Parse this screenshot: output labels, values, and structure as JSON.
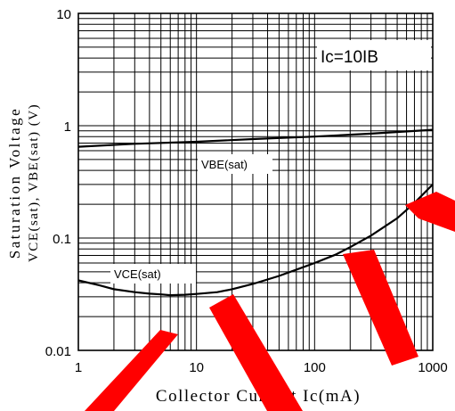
{
  "chart_data": {
    "type": "line",
    "x_scale": "log",
    "y_scale": "log",
    "xlim": [
      1,
      1000
    ],
    "ylim": [
      0.01,
      10
    ],
    "x_tick_labels": [
      "1",
      "10",
      "100",
      "1000"
    ],
    "y_tick_labels": [
      "10",
      "1",
      "0.1",
      "0.01"
    ],
    "xlabel": "Collector Current Ic(mA)",
    "ylabel_line1": "Saturation Voltage",
    "ylabel_line2": "VCE(sat), VBE(sat) (V)",
    "annotation": "Ic=10IB",
    "grid": true,
    "series": [
      {
        "name": "VBE(sat)",
        "x": [
          1,
          3,
          10,
          30,
          100,
          300,
          1000
        ],
        "y": [
          0.65,
          0.69,
          0.72,
          0.76,
          0.8,
          0.85,
          0.92
        ]
      },
      {
        "name": "VCE(sat)",
        "x": [
          1,
          1.5,
          2,
          3,
          4,
          5,
          6,
          8,
          10,
          15,
          20,
          30,
          50,
          80,
          100,
          150,
          200,
          300,
          500,
          700,
          1000
        ],
        "y": [
          0.042,
          0.038,
          0.035,
          0.033,
          0.032,
          0.0315,
          0.031,
          0.0313,
          0.0318,
          0.033,
          0.035,
          0.039,
          0.046,
          0.055,
          0.06,
          0.071,
          0.083,
          0.105,
          0.15,
          0.205,
          0.3
        ]
      }
    ]
  }
}
